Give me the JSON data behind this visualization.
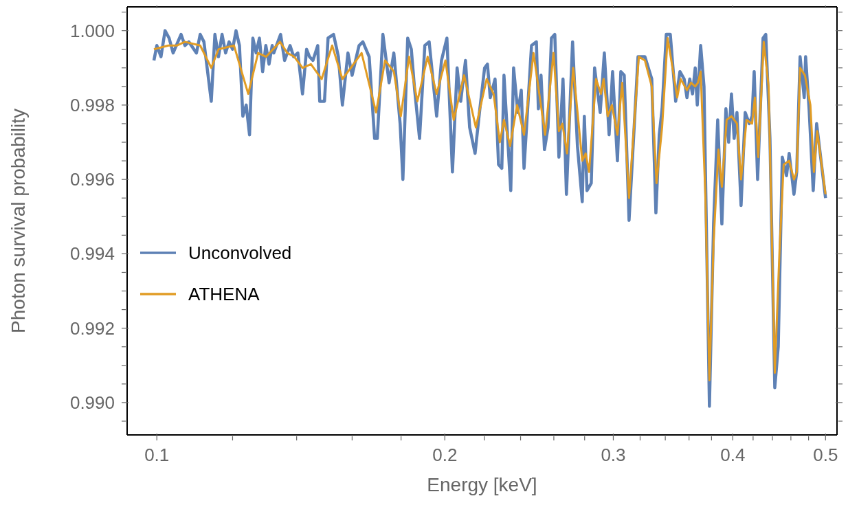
{
  "chart_data": {
    "type": "line",
    "xlabel": "Energy [keV]",
    "ylabel": "Photon survival probability",
    "log": "x",
    "legend": "left",
    "marker": "none",
    "line_style": "solid",
    "xlim": [
      0.0931,
      0.514
    ],
    "xticks": [
      {
        "value": 0.1,
        "label": "0.1"
      },
      {
        "value": 0.12,
        "label": null
      },
      {
        "value": 0.14,
        "label": null
      },
      {
        "value": 0.16,
        "label": null
      },
      {
        "value": 0.18,
        "label": null
      },
      {
        "value": 0.2,
        "label": "0.2"
      },
      {
        "value": 0.22,
        "label": null
      },
      {
        "value": 0.24,
        "label": null
      },
      {
        "value": 0.26,
        "label": null
      },
      {
        "value": 0.28,
        "label": null
      },
      {
        "value": 0.3,
        "label": "0.3"
      },
      {
        "value": 0.32,
        "label": null
      },
      {
        "value": 0.34,
        "label": null
      },
      {
        "value": 0.36,
        "label": null
      },
      {
        "value": 0.38,
        "label": null
      },
      {
        "value": 0.4,
        "label": "0.4"
      },
      {
        "value": 0.42,
        "label": null
      },
      {
        "value": 0.44,
        "label": null
      },
      {
        "value": 0.46,
        "label": null
      },
      {
        "value": 0.48,
        "label": null
      },
      {
        "value": 0.5,
        "label": "0.5"
      }
    ],
    "ylim": [
      0.98913,
      1.00064
    ],
    "yticks": [
      {
        "value": 0.9895,
        "label": null
      },
      {
        "value": 0.99,
        "label": "0.990"
      },
      {
        "value": 0.9905,
        "label": null
      },
      {
        "value": 0.991,
        "label": null
      },
      {
        "value": 0.9915,
        "label": null
      },
      {
        "value": 0.992,
        "label": "0.992"
      },
      {
        "value": 0.9925,
        "label": null
      },
      {
        "value": 0.993,
        "label": null
      },
      {
        "value": 0.9935,
        "label": null
      },
      {
        "value": 0.994,
        "label": "0.994"
      },
      {
        "value": 0.9945,
        "label": null
      },
      {
        "value": 0.995,
        "label": null
      },
      {
        "value": 0.9955,
        "label": null
      },
      {
        "value": 0.996,
        "label": "0.996"
      },
      {
        "value": 0.9965,
        "label": null
      },
      {
        "value": 0.997,
        "label": null
      },
      {
        "value": 0.9975,
        "label": null
      },
      {
        "value": 0.998,
        "label": "0.998"
      },
      {
        "value": 0.9985,
        "label": null
      },
      {
        "value": 0.999,
        "label": null
      },
      {
        "value": 0.9995,
        "label": null
      },
      {
        "value": 1,
        "label": "1.000"
      },
      {
        "value": 1.0005,
        "label": null
      }
    ],
    "series": [
      {
        "name": "Unconvolved",
        "color": "#5e81b5",
        "x": [
          0.0993,
          0.1,
          0.101,
          0.102,
          0.103,
          0.104,
          0.106,
          0.107,
          0.108,
          0.11,
          0.111,
          0.112,
          0.114,
          0.115,
          0.116,
          0.117,
          0.118,
          0.119,
          0.12,
          0.121,
          0.122,
          0.123,
          0.124,
          0.125,
          0.126,
          0.127,
          0.128,
          0.129,
          0.13,
          0.131,
          0.132,
          0.1325,
          0.1347,
          0.136,
          0.1378,
          0.139,
          0.1404,
          0.142,
          0.1434,
          0.1444,
          0.1456,
          0.1473,
          0.148,
          0.1497,
          0.151,
          0.153,
          0.1548,
          0.1563,
          0.1584,
          0.16,
          0.1627,
          0.1642,
          0.1667,
          0.1689,
          0.17,
          0.1723,
          0.1749,
          0.1769,
          0.1796,
          0.1808,
          0.1829,
          0.1845,
          0.186,
          0.1882,
          0.1906,
          0.1926,
          0.1961,
          0.1984,
          0.201,
          0.2037,
          0.206,
          0.2078,
          0.2102,
          0.2123,
          0.2151,
          0.2176,
          0.2201,
          0.2216,
          0.2231,
          0.2257,
          0.2276,
          0.2294,
          0.2306,
          0.2344,
          0.236,
          0.2384,
          0.2404,
          0.242,
          0.2464,
          0.2493,
          0.2505,
          0.2521,
          0.2542,
          0.2564,
          0.2585,
          0.2606,
          0.2632,
          0.2658,
          0.268,
          0.272,
          0.2752,
          0.2784,
          0.2798,
          0.2816,
          0.2845,
          0.2868,
          0.2907,
          0.2936,
          0.297,
          0.2995,
          0.303,
          0.3055,
          0.308,
          0.3116,
          0.3184,
          0.3237,
          0.3291,
          0.3324,
          0.3351,
          0.3374,
          0.3408,
          0.3441,
          0.3486,
          0.3522,
          0.3558,
          0.3582,
          0.3606,
          0.363,
          0.3654,
          0.3672,
          0.3702,
          0.3732,
          0.3781,
          0.3819,
          0.3857,
          0.3896,
          0.3934,
          0.396,
          0.3987,
          0.4013,
          0.404,
          0.408,
          0.4121,
          0.4162,
          0.419,
          0.4211,
          0.4246,
          0.4302,
          0.433,
          0.4374,
          0.4425,
          0.4462,
          0.4506,
          0.4552,
          0.4581,
          0.4634,
          0.4665,
          0.4703,
          0.475,
          0.4766,
          0.4806,
          0.4854,
          0.4894,
          0.5
        ],
        "values": [
          0.9992,
          0.9996,
          0.9993,
          1,
          0.9998,
          0.9994,
          0.9999,
          0.9996,
          0.9997,
          0.9994,
          0.9999,
          0.9997,
          0.9981,
          0.9999,
          0.9993,
          0.9999,
          0.9994,
          0.9997,
          0.9995,
          1,
          0.9996,
          0.9977,
          0.998,
          0.9972,
          0.9998,
          0.9994,
          0.9998,
          0.9989,
          0.9996,
          0.9991,
          0.9996,
          0.9994,
          0.9999,
          0.9992,
          0.9996,
          0.9993,
          0.9994,
          0.9983,
          0.9995,
          0.9993,
          0.9992,
          0.9996,
          0.9981,
          0.9981,
          0.9998,
          0.9999,
          0.9993,
          0.998,
          0.9994,
          0.9988,
          0.9996,
          0.9997,
          0.9993,
          0.9971,
          0.9971,
          0.9999,
          0.9986,
          0.9994,
          0.9975,
          0.996,
          0.9998,
          0.9995,
          0.9984,
          0.9971,
          0.9996,
          0.9997,
          0.9977,
          0.9992,
          0.9998,
          0.9962,
          0.999,
          0.9981,
          0.9992,
          0.9974,
          0.9967,
          0.9979,
          0.999,
          0.9991,
          0.9982,
          0.9987,
          0.9964,
          0.9963,
          0.9988,
          0.9957,
          0.999,
          0.9978,
          0.9984,
          0.9963,
          0.9996,
          0.9997,
          0.9979,
          0.9988,
          0.9968,
          0.9974,
          0.9998,
          0.9999,
          0.9966,
          0.9987,
          0.9956,
          0.9997,
          0.9969,
          0.9954,
          0.9977,
          0.9957,
          0.9959,
          0.999,
          0.9978,
          0.9994,
          0.9972,
          0.9989,
          0.9965,
          0.9989,
          0.9988,
          0.9949,
          0.9993,
          0.9993,
          0.9987,
          0.9951,
          0.9972,
          0.9979,
          0.9999,
          0.9999,
          0.9981,
          0.9989,
          0.9987,
          0.9982,
          0.9987,
          0.9983,
          0.999,
          0.998,
          0.9996,
          0.9985,
          0.9899,
          0.9948,
          0.9976,
          0.9948,
          0.9979,
          0.997,
          0.9983,
          0.9971,
          0.9978,
          0.9953,
          0.9978,
          0.9975,
          0.9977,
          0.9989,
          0.996,
          0.9998,
          0.9999,
          0.9971,
          0.9904,
          0.9915,
          0.9966,
          0.9961,
          0.9967,
          0.9956,
          0.9962,
          0.9993,
          0.9982,
          0.9993,
          0.9979,
          0.9957,
          0.9975,
          0.9955
        ]
      },
      {
        "name": "ATHENA",
        "color": "#e19c24",
        "x": [
          0.0993,
          0.1028,
          0.1049,
          0.107,
          0.111,
          0.114,
          0.116,
          0.1204,
          0.122,
          0.1246,
          0.1276,
          0.1301,
          0.1345,
          0.1369,
          0.1392,
          0.142,
          0.1449,
          0.1487,
          0.1525,
          0.1563,
          0.1595,
          0.1637,
          0.1695,
          0.1732,
          0.1769,
          0.1799,
          0.1835,
          0.1872,
          0.1919,
          0.1961,
          0.2003,
          0.2043,
          0.2095,
          0.2155,
          0.2212,
          0.2249,
          0.2283,
          0.2306,
          0.234,
          0.238,
          0.242,
          0.2476,
          0.2546,
          0.2598,
          0.2632,
          0.2654,
          0.2684,
          0.2724,
          0.2784,
          0.2807,
          0.283,
          0.2878,
          0.2912,
          0.2931,
          0.296,
          0.299,
          0.303,
          0.3065,
          0.3116,
          0.319,
          0.3237,
          0.3291,
          0.3329,
          0.3374,
          0.3419,
          0.3465,
          0.3499,
          0.3528,
          0.3582,
          0.3617,
          0.3654,
          0.3678,
          0.3702,
          0.3744,
          0.3781,
          0.3819,
          0.3864,
          0.3896,
          0.3941,
          0.3987,
          0.404,
          0.408,
          0.4134,
          0.419,
          0.4218,
          0.4253,
          0.4309,
          0.436,
          0.4425,
          0.4476,
          0.4521,
          0.4581,
          0.4634,
          0.4665,
          0.4703,
          0.4758,
          0.4821,
          0.4862,
          0.4901,
          0.5
        ],
        "values": [
          0.9995,
          0.9996,
          0.9996,
          0.9997,
          0.9996,
          0.999,
          0.9995,
          0.9996,
          0.9991,
          0.9983,
          0.9994,
          0.9993,
          0.9997,
          0.9994,
          0.9993,
          0.999,
          0.9991,
          0.9987,
          0.9996,
          0.9987,
          0.999,
          0.9994,
          0.9978,
          0.9992,
          0.9989,
          0.9977,
          0.9993,
          0.9981,
          0.9993,
          0.9983,
          0.9992,
          0.9976,
          0.9988,
          0.9974,
          0.9987,
          0.9983,
          0.997,
          0.9976,
          0.9969,
          0.998,
          0.9972,
          0.9994,
          0.9972,
          0.9994,
          0.9973,
          0.9975,
          0.9967,
          0.999,
          0.9965,
          0.9967,
          0.9962,
          0.9987,
          0.9983,
          0.9987,
          0.9977,
          0.998,
          0.9972,
          0.9986,
          0.9955,
          0.9993,
          0.9992,
          0.9985,
          0.9959,
          0.9974,
          0.9998,
          0.9989,
          0.9982,
          0.9987,
          0.9984,
          0.9986,
          0.9985,
          0.9986,
          0.9989,
          0.9956,
          0.9906,
          0.9943,
          0.9968,
          0.9958,
          0.9976,
          0.9977,
          0.9975,
          0.996,
          0.9976,
          0.9975,
          0.9982,
          0.9966,
          0.9997,
          0.9985,
          0.9908,
          0.9941,
          0.9964,
          0.9965,
          0.996,
          0.9962,
          0.999,
          0.9988,
          0.998,
          0.9962,
          0.9973,
          0.9956
        ]
      }
    ]
  }
}
